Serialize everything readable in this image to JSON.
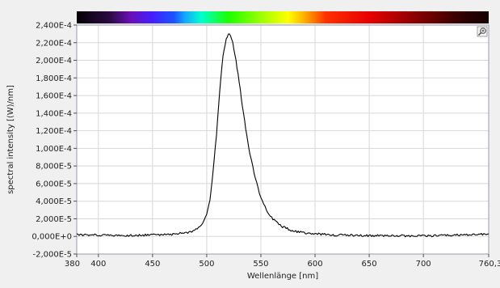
{
  "chart_data": {
    "type": "line",
    "xlabel": "Wellenlänge [nm]",
    "ylabel": "spectral intensity [(W)/nm]",
    "xlim": [
      380,
      760.3
    ],
    "ylim": [
      -2e-05,
      0.00024
    ],
    "x_ticks": [
      380,
      400,
      450,
      500,
      550,
      600,
      650,
      700,
      760.3
    ],
    "x_tick_labels": [
      "380",
      "400",
      "450",
      "500",
      "550",
      "600",
      "650",
      "700",
      "760,3"
    ],
    "y_ticks": [
      -2e-05,
      0,
      2e-05,
      4e-05,
      6e-05,
      8e-05,
      0.0001,
      0.00012,
      0.00014,
      0.00016,
      0.00018,
      0.0002,
      0.00022,
      0.00024
    ],
    "y_tick_labels": [
      "-2,000E-5",
      "0,000E+0",
      "2,000E-5",
      "4,000E-5",
      "6,000E-5",
      "8,000E-5",
      "1,000E-4",
      "1,200E-4",
      "1,400E-4",
      "1,600E-4",
      "1,800E-4",
      "2,000E-4",
      "2,200E-4",
      "2,400E-4"
    ],
    "grid": true,
    "legend": "none",
    "series": [
      {
        "color": "#000000",
        "x": [
          380,
          400,
          420,
          440,
          460,
          470,
          480,
          485,
          490,
          495,
          500,
          503,
          506,
          509,
          512,
          515,
          518,
          520,
          522,
          524,
          527,
          530,
          533,
          536,
          540,
          545,
          550,
          555,
          560,
          570,
          580,
          590,
          600,
          620,
          650,
          700,
          740,
          760.3
        ],
        "y": [
          2e-06,
          1.5e-06,
          1e-06,
          1.5e-06,
          2e-06,
          2.5e-06,
          4e-06,
          5e-06,
          8e-06,
          1.3e-05,
          2.5e-05,
          4.2e-05,
          7.5e-05,
          0.000115,
          0.000165,
          0.000205,
          0.000225,
          0.00023,
          0.000228,
          0.00022,
          0.0002,
          0.000175,
          0.000148,
          0.000122,
          9.3e-05,
          6.5e-05,
          4.4e-05,
          3e-05,
          2.1e-05,
          1.1e-05,
          6e-06,
          4e-06,
          3e-06,
          1.5e-06,
          1e-06,
          5e-07,
          2e-06,
          3e-06
        ]
      }
    ]
  },
  "toolbar": {
    "zoom_icon": "magnifier-zoom-icon"
  },
  "spectrum_bar": {
    "stops": [
      {
        "wl": 380,
        "color": "#050005"
      },
      {
        "wl": 410,
        "color": "#2a0a40"
      },
      {
        "wl": 430,
        "color": "#6a0fb8"
      },
      {
        "wl": 450,
        "color": "#4320ff"
      },
      {
        "wl": 470,
        "color": "#1a55ff"
      },
      {
        "wl": 480,
        "color": "#14a8ff"
      },
      {
        "wl": 495,
        "color": "#00ffcc"
      },
      {
        "wl": 520,
        "color": "#1dff00"
      },
      {
        "wl": 550,
        "color": "#9cff00"
      },
      {
        "wl": 575,
        "color": "#ffff00"
      },
      {
        "wl": 590,
        "color": "#ffb000"
      },
      {
        "wl": 610,
        "color": "#ff3000"
      },
      {
        "wl": 650,
        "color": "#e60000"
      },
      {
        "wl": 700,
        "color": "#7a0000"
      },
      {
        "wl": 730,
        "color": "#3a0000"
      },
      {
        "wl": 760.3,
        "color": "#120000"
      }
    ]
  }
}
